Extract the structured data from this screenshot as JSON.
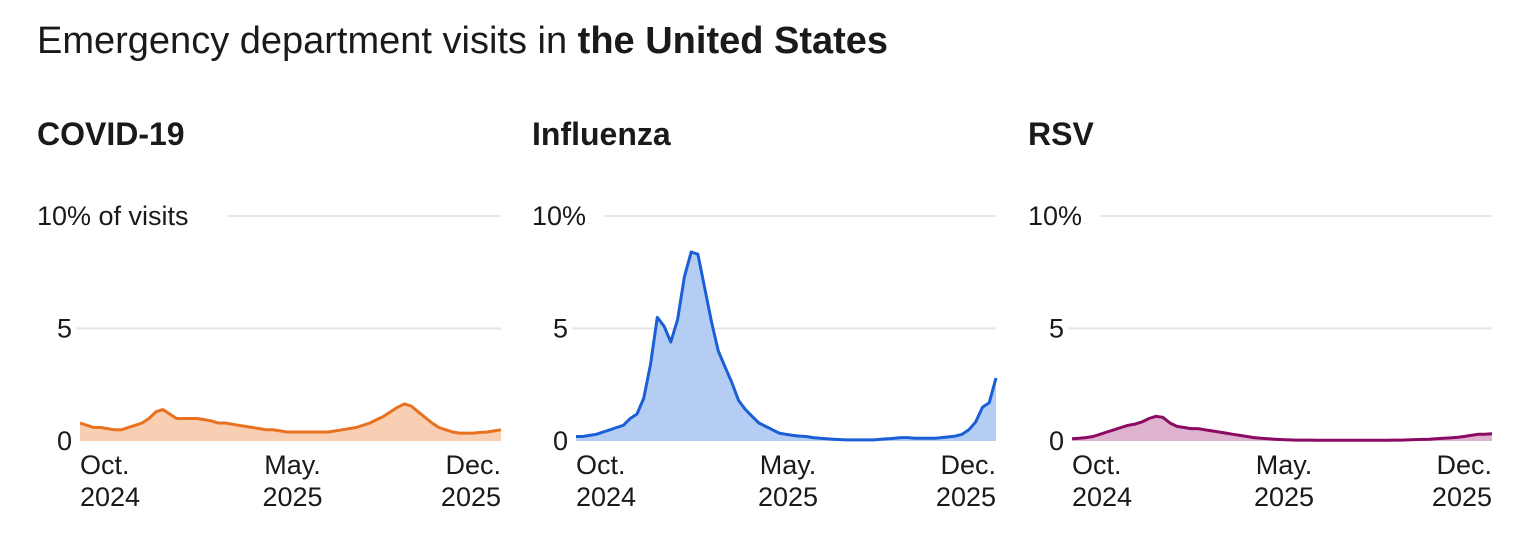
{
  "title": {
    "prefix": "Emergency department visits in ",
    "bold": "the United States"
  },
  "colors": {
    "covid_line": "#e8711f",
    "covid_fill": "#f9cfb4",
    "flu_line": "#1a5fd6",
    "flu_fill": "#b5cdf3",
    "rsv_line": "#8b0a63",
    "rsv_fill": "#dfb2cf",
    "grid": "#e6e6e6"
  },
  "chart_data": [
    {
      "type": "area",
      "title": "COVID-19",
      "ylabel": "",
      "ylim": [
        0,
        10
      ],
      "y_ticks": [
        {
          "value": 0,
          "label": "0"
        },
        {
          "value": 5,
          "label": "5"
        },
        {
          "value": 10,
          "label": "10% of visits"
        }
      ],
      "x_ticks": [
        {
          "month": "Oct.",
          "year": "2024"
        },
        {
          "month": "May.",
          "year": "2025"
        },
        {
          "month": "Dec.",
          "year": "2025"
        }
      ],
      "grid": true,
      "values": [
        0.8,
        0.7,
        0.6,
        0.6,
        0.55,
        0.5,
        0.5,
        0.6,
        0.7,
        0.8,
        1.0,
        1.3,
        1.4,
        1.2,
        1.0,
        1.0,
        1.0,
        1.0,
        0.95,
        0.9,
        0.8,
        0.8,
        0.75,
        0.7,
        0.65,
        0.6,
        0.55,
        0.5,
        0.5,
        0.45,
        0.4,
        0.4,
        0.4,
        0.4,
        0.4,
        0.4,
        0.4,
        0.45,
        0.5,
        0.55,
        0.6,
        0.7,
        0.8,
        0.95,
        1.1,
        1.3,
        1.5,
        1.65,
        1.55,
        1.3,
        1.05,
        0.8,
        0.6,
        0.5,
        0.4,
        0.35,
        0.35,
        0.35,
        0.38,
        0.4,
        0.45,
        0.5
      ]
    },
    {
      "type": "area",
      "title": "Influenza",
      "ylabel": "",
      "ylim": [
        0,
        10
      ],
      "y_ticks": [
        {
          "value": 0,
          "label": "0"
        },
        {
          "value": 5,
          "label": "5"
        },
        {
          "value": 10,
          "label": "10%"
        }
      ],
      "x_ticks": [
        {
          "month": "Oct.",
          "year": "2024"
        },
        {
          "month": "May.",
          "year": "2025"
        },
        {
          "month": "Dec.",
          "year": "2025"
        }
      ],
      "grid": true,
      "values": [
        0.2,
        0.2,
        0.25,
        0.3,
        0.4,
        0.5,
        0.6,
        0.7,
        1.0,
        1.2,
        1.9,
        3.4,
        5.5,
        5.1,
        4.4,
        5.4,
        7.3,
        8.4,
        8.3,
        6.8,
        5.3,
        4.0,
        3.3,
        2.6,
        1.8,
        1.4,
        1.1,
        0.8,
        0.65,
        0.5,
        0.35,
        0.3,
        0.25,
        0.22,
        0.2,
        0.15,
        0.12,
        0.1,
        0.08,
        0.06,
        0.05,
        0.05,
        0.05,
        0.05,
        0.05,
        0.08,
        0.1,
        0.12,
        0.15,
        0.15,
        0.12,
        0.12,
        0.12,
        0.12,
        0.15,
        0.18,
        0.22,
        0.3,
        0.5,
        0.85,
        1.5,
        1.7,
        2.8
      ]
    },
    {
      "type": "area",
      "title": "RSV",
      "ylabel": "",
      "ylim": [
        0,
        10
      ],
      "y_ticks": [
        {
          "value": 0,
          "label": "0"
        },
        {
          "value": 5,
          "label": "5"
        },
        {
          "value": 10,
          "label": "10%"
        }
      ],
      "x_ticks": [
        {
          "month": "Oct.",
          "year": "2024"
        },
        {
          "month": "May.",
          "year": "2025"
        },
        {
          "month": "Dec.",
          "year": "2025"
        }
      ],
      "grid": true,
      "values": [
        0.1,
        0.12,
        0.15,
        0.2,
        0.3,
        0.4,
        0.5,
        0.6,
        0.7,
        0.75,
        0.85,
        1.0,
        1.1,
        1.05,
        0.8,
        0.65,
        0.6,
        0.55,
        0.55,
        0.5,
        0.45,
        0.4,
        0.35,
        0.3,
        0.25,
        0.2,
        0.15,
        0.12,
        0.1,
        0.08,
        0.06,
        0.05,
        0.04,
        0.04,
        0.04,
        0.03,
        0.03,
        0.03,
        0.03,
        0.03,
        0.03,
        0.03,
        0.03,
        0.03,
        0.03,
        0.03,
        0.04,
        0.04,
        0.05,
        0.06,
        0.07,
        0.08,
        0.1,
        0.12,
        0.14,
        0.16,
        0.2,
        0.25,
        0.3,
        0.3,
        0.32
      ]
    }
  ]
}
